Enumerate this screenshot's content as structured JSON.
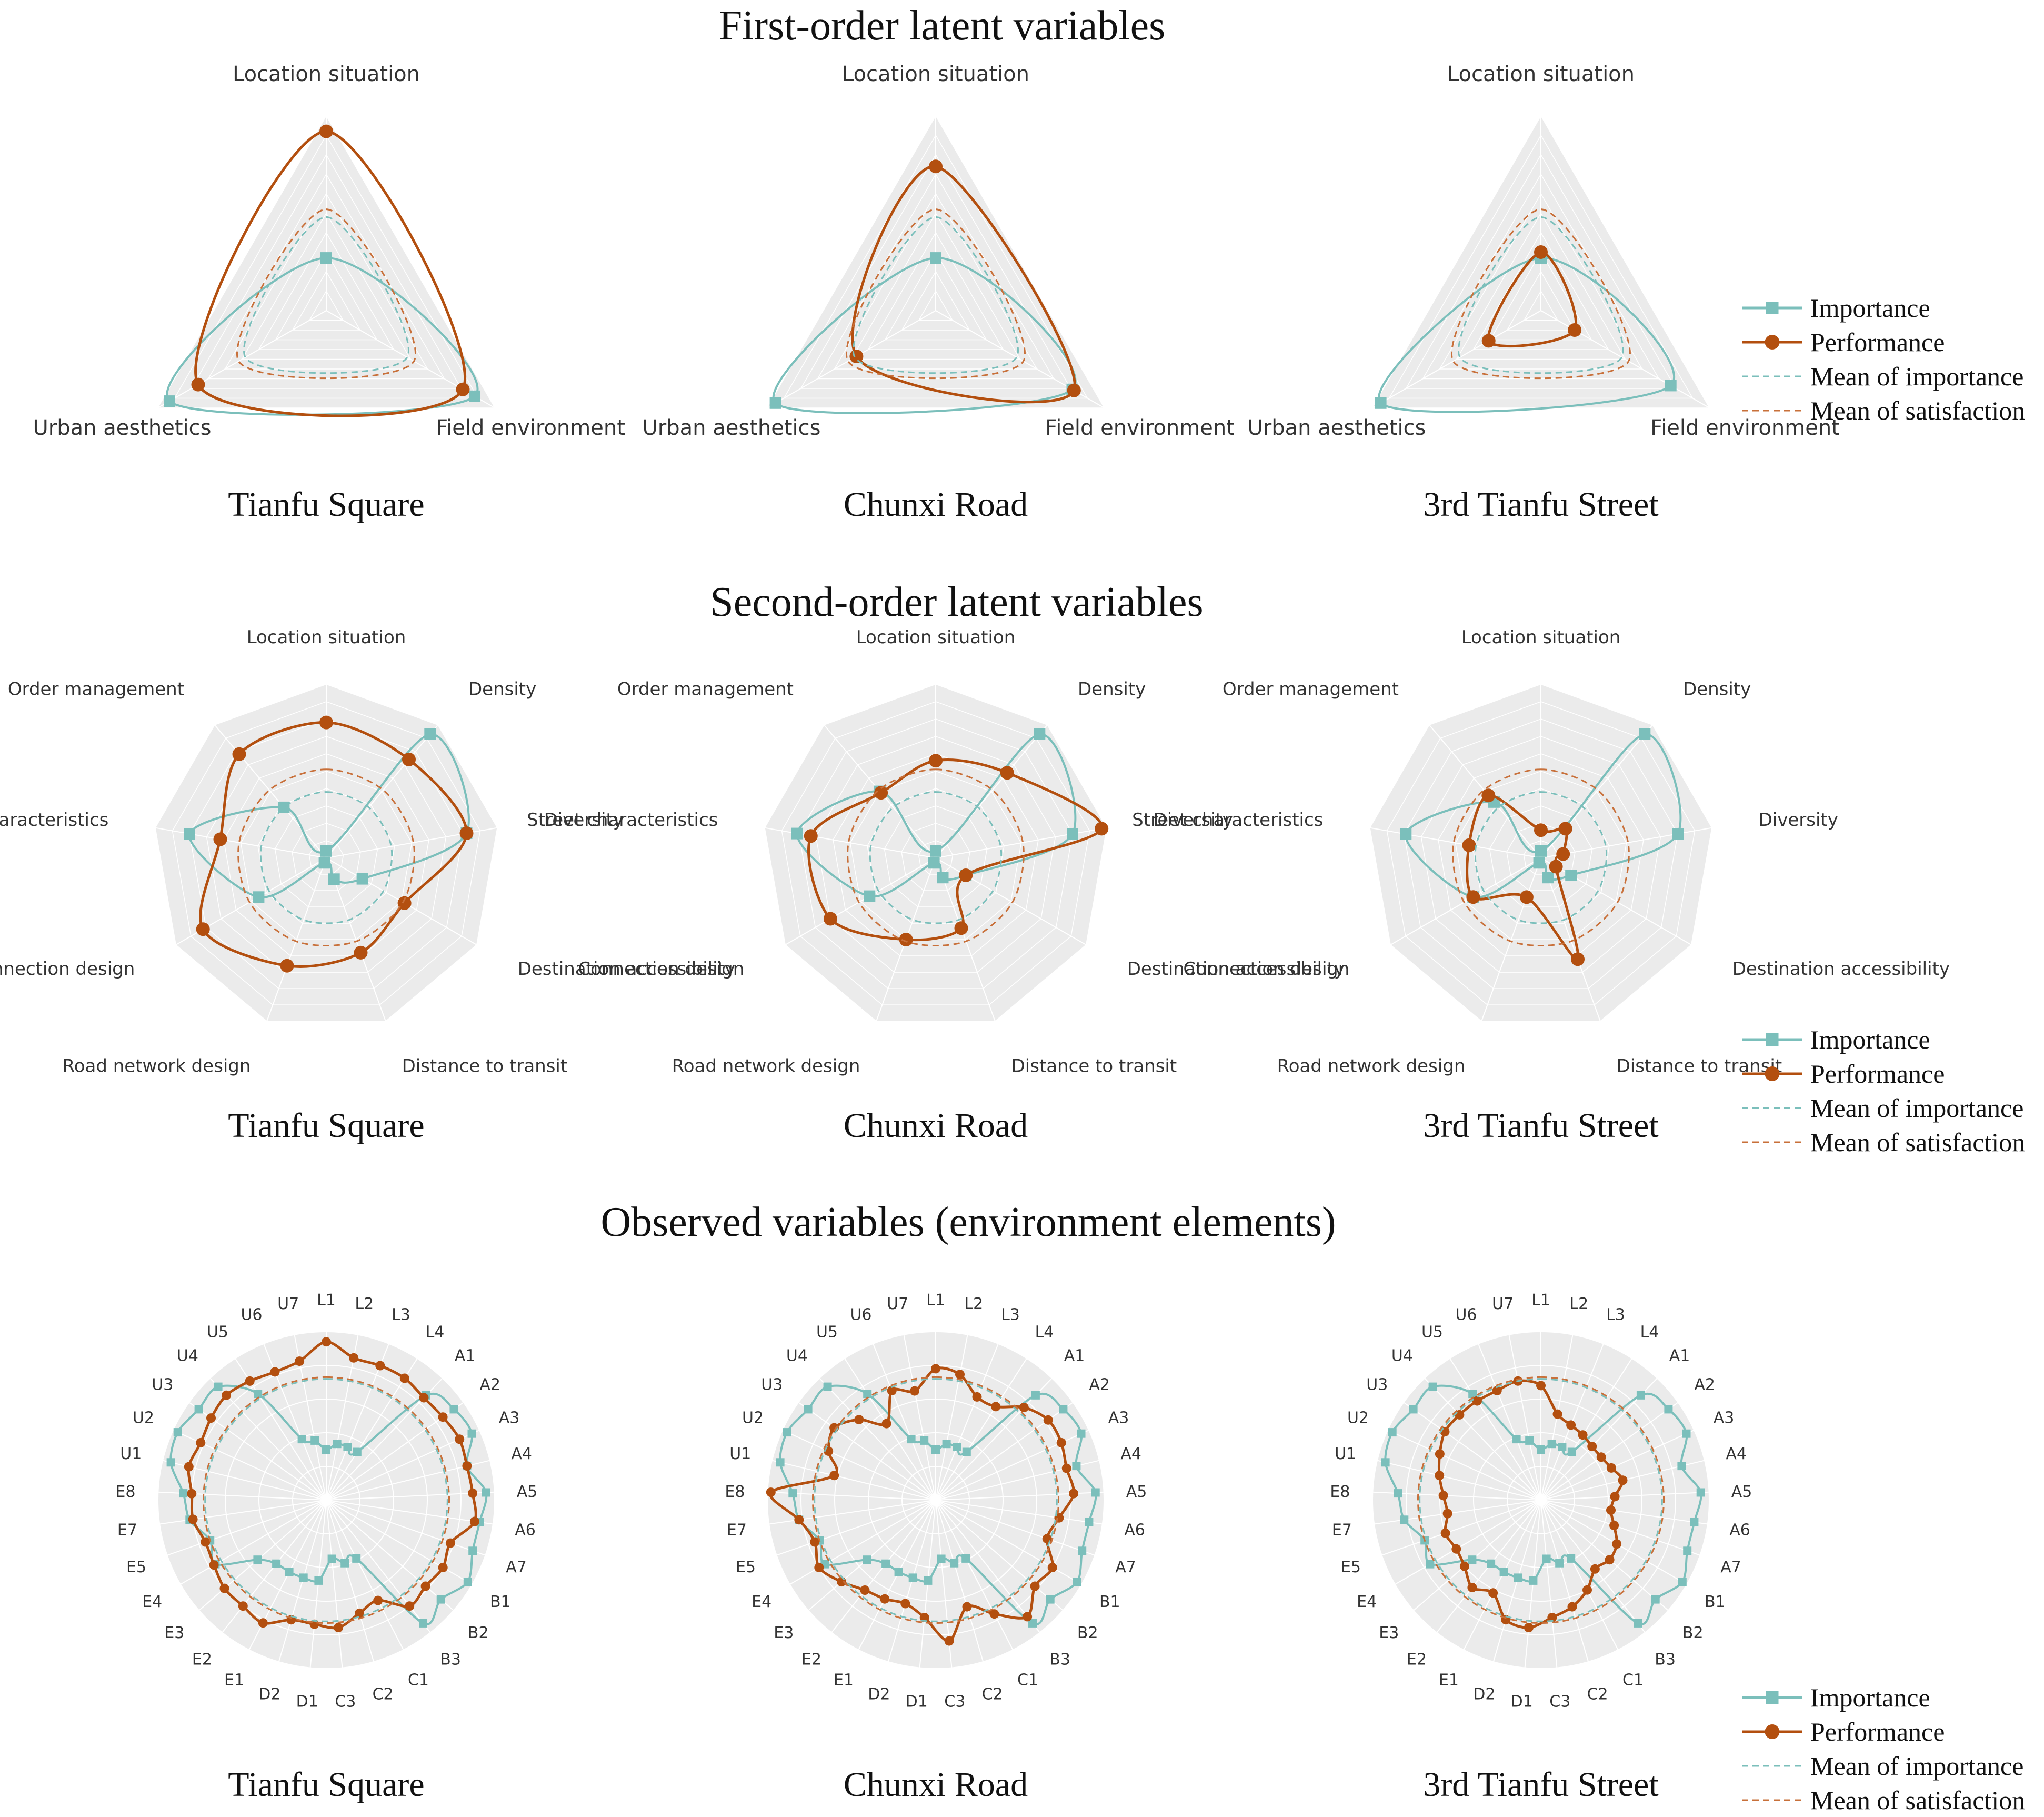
{
  "colors": {
    "importance": "#7bbfbb",
    "performance": "#b34f0f",
    "mean_importance": "#7bbfbb",
    "mean_satisfaction": "#c8703a",
    "grid_bg": "#ebebeb",
    "grid_line": "#ffffff"
  },
  "row_titles": [
    "First-order latent variables",
    "Second-order latent variables",
    "Observed variables (environment elements)"
  ],
  "legend": {
    "importance": "Importance",
    "performance": "Performance",
    "mean_importance": "Mean of importance",
    "mean_satisfaction": "Mean of satisfaction"
  },
  "chart_data": [
    {
      "type": "radar",
      "row": 1,
      "title": "Tianfu Square",
      "axes": [
        "Location situation",
        "Field environment",
        "Urban aesthetics"
      ],
      "range": [
        0,
        1
      ],
      "series": [
        {
          "name": "Importance",
          "values": [
            0.27,
            0.88,
            0.93
          ]
        },
        {
          "name": "Performance",
          "values": [
            0.92,
            0.81,
            0.76
          ]
        },
        {
          "name": "Mean of importance",
          "values": [
            0.48,
            0.48,
            0.48
          ]
        },
        {
          "name": "Mean of satisfaction",
          "values": [
            0.52,
            0.52,
            0.52
          ]
        }
      ]
    },
    {
      "type": "radar",
      "row": 1,
      "title": "Chunxi Road",
      "axes": [
        "Location situation",
        "Field environment",
        "Urban aesthetics"
      ],
      "range": [
        0,
        1
      ],
      "series": [
        {
          "name": "Importance",
          "values": [
            0.27,
            0.81,
            0.95
          ]
        },
        {
          "name": "Performance",
          "values": [
            0.74,
            0.82,
            0.47
          ]
        },
        {
          "name": "Mean of importance",
          "values": [
            0.48,
            0.48,
            0.48
          ]
        },
        {
          "name": "Mean of satisfaction",
          "values": [
            0.52,
            0.52,
            0.52
          ]
        }
      ]
    },
    {
      "type": "radar",
      "row": 1,
      "title": "3rd Tianfu Street",
      "axes": [
        "Location situation",
        "Field environment",
        "Urban aesthetics"
      ],
      "range": [
        0,
        1
      ],
      "series": [
        {
          "name": "Importance",
          "values": [
            0.27,
            0.77,
            0.95
          ]
        },
        {
          "name": "Performance",
          "values": [
            0.3,
            0.2,
            0.31
          ]
        },
        {
          "name": "Mean of importance",
          "values": [
            0.48,
            0.48,
            0.48
          ]
        },
        {
          "name": "Mean of satisfaction",
          "values": [
            0.52,
            0.52,
            0.52
          ]
        }
      ]
    },
    {
      "type": "radar",
      "row": 2,
      "title": "Tianfu Square",
      "axes": [
        "Location situation",
        "Density",
        "Diversity",
        "Destination accessibility",
        "Distance to transit",
        "Road network design",
        "Connection design",
        "Street characteristics",
        "Order management"
      ],
      "range": [
        0,
        1
      ],
      "series": [
        {
          "name": "Importance",
          "values": [
            0.04,
            0.93,
            0.82,
            0.24,
            0.13,
            0.03,
            0.45,
            0.8,
            0.38
          ]
        },
        {
          "name": "Performance",
          "values": [
            0.78,
            0.74,
            0.82,
            0.52,
            0.58,
            0.66,
            0.82,
            0.62,
            0.78
          ]
        },
        {
          "name": "Mean of importance",
          "values": [
            0.38,
            0.38,
            0.38,
            0.38,
            0.38,
            0.38,
            0.38,
            0.38,
            0.38
          ]
        },
        {
          "name": "Mean of satisfaction",
          "values": [
            0.51,
            0.51,
            0.51,
            0.51,
            0.51,
            0.51,
            0.51,
            0.51,
            0.51
          ]
        }
      ]
    },
    {
      "type": "radar",
      "row": 2,
      "title": "Chunxi Road",
      "axes": [
        "Location situation",
        "Density",
        "Diversity",
        "Destination accessibility",
        "Distance to transit",
        "Road network design",
        "Connection design",
        "Street characteristics",
        "Order management"
      ],
      "range": [
        0,
        1
      ],
      "series": [
        {
          "name": "Importance",
          "values": [
            0.04,
            0.93,
            0.8,
            0.2,
            0.12,
            0.03,
            0.44,
            0.81,
            0.5
          ]
        },
        {
          "name": "Performance",
          "values": [
            0.56,
            0.64,
            0.97,
            0.2,
            0.43,
            0.5,
            0.7,
            0.73,
            0.49
          ]
        },
        {
          "name": "Mean of importance",
          "values": [
            0.38,
            0.38,
            0.38,
            0.38,
            0.38,
            0.38,
            0.38,
            0.38,
            0.38
          ]
        },
        {
          "name": "Mean of satisfaction",
          "values": [
            0.51,
            0.51,
            0.51,
            0.51,
            0.51,
            0.51,
            0.51,
            0.51,
            0.51
          ]
        }
      ]
    },
    {
      "type": "radar",
      "row": 2,
      "title": "3rd Tianfu Street",
      "axes": [
        "Location situation",
        "Density",
        "Diversity",
        "Destination accessibility",
        "Distance to transit",
        "Road network design",
        "Connection design",
        "Street characteristics",
        "Order management"
      ],
      "range": [
        0,
        1
      ],
      "series": [
        {
          "name": "Importance",
          "values": [
            0.04,
            0.93,
            0.8,
            0.2,
            0.12,
            0.03,
            0.45,
            0.79,
            0.42
          ]
        },
        {
          "name": "Performance",
          "values": [
            0.16,
            0.22,
            0.13,
            0.1,
            0.62,
            0.24,
            0.45,
            0.42,
            0.47
          ]
        },
        {
          "name": "Mean of importance",
          "values": [
            0.38,
            0.38,
            0.38,
            0.38,
            0.38,
            0.38,
            0.38,
            0.38,
            0.38
          ]
        },
        {
          "name": "Mean of satisfaction",
          "values": [
            0.51,
            0.51,
            0.51,
            0.51,
            0.51,
            0.51,
            0.51,
            0.51,
            0.51
          ]
        }
      ]
    },
    {
      "type": "radar",
      "row": 3,
      "title": "Tianfu Square",
      "axes": [
        "L1",
        "L2",
        "L3",
        "L4",
        "A1",
        "A2",
        "A3",
        "A4",
        "A5",
        "A6",
        "A7",
        "B1",
        "B2",
        "B3",
        "C1",
        "C2",
        "C3",
        "D1",
        "D2",
        "E1",
        "E2",
        "E3",
        "E4",
        "E5",
        "E7",
        "E8",
        "U1",
        "U2",
        "U3",
        "U4",
        "U5",
        "U6",
        "U7"
      ],
      "range": [
        0,
        1
      ],
      "series": [
        {
          "name": "Importance",
          "values": [
            0.3,
            0.34,
            0.34,
            0.34,
            0.86,
            0.93,
            0.95,
            0.86,
            0.95,
            0.92,
            0.92,
            0.97,
            0.9,
            0.93,
            0.39,
            0.39,
            0.35,
            0.48,
            0.48,
            0.48,
            0.48,
            0.54,
            0.76,
            0.73,
            0.82,
            0.85,
            0.95,
            0.97,
            0.93,
            0.93,
            0.75,
            0.39,
            0.36
          ]
        },
        {
          "name": "Performance",
          "values": [
            0.94,
            0.86,
            0.86,
            0.86,
            0.84,
            0.85,
            0.87,
            0.86,
            0.87,
            0.89,
            0.78,
            0.8,
            0.78,
            0.8,
            0.67,
            0.7,
            0.76,
            0.74,
            0.74,
            0.82,
            0.8,
            0.8,
            0.77,
            0.76,
            0.8,
            0.8,
            0.84,
            0.82,
            0.84,
            0.86,
            0.84,
            0.82,
            0.84
          ]
        },
        {
          "name": "Mean of importance",
          "values": [
            0.72,
            0.72,
            0.72,
            0.72,
            0.72,
            0.72,
            0.72,
            0.72,
            0.72,
            0.72,
            0.72,
            0.72,
            0.72,
            0.72,
            0.72,
            0.72,
            0.72,
            0.72,
            0.72,
            0.72,
            0.72,
            0.72,
            0.72,
            0.72,
            0.72,
            0.72,
            0.72,
            0.72,
            0.72,
            0.72,
            0.72,
            0.72,
            0.72
          ]
        },
        {
          "name": "Mean of satisfaction",
          "values": [
            0.73,
            0.73,
            0.73,
            0.73,
            0.73,
            0.73,
            0.73,
            0.73,
            0.73,
            0.73,
            0.73,
            0.73,
            0.73,
            0.73,
            0.73,
            0.73,
            0.73,
            0.73,
            0.73,
            0.73,
            0.73,
            0.73,
            0.73,
            0.73,
            0.73,
            0.73,
            0.73,
            0.73,
            0.73,
            0.73,
            0.73,
            0.73,
            0.73
          ]
        }
      ]
    },
    {
      "type": "radar",
      "row": 3,
      "title": "Chunxi Road",
      "axes": [
        "L1",
        "L2",
        "L3",
        "L4",
        "A1",
        "A2",
        "A3",
        "A4",
        "A5",
        "A6",
        "A7",
        "B1",
        "B2",
        "B3",
        "C1",
        "C2",
        "C3",
        "D1",
        "D2",
        "E1",
        "E2",
        "E3",
        "E4",
        "E5",
        "E7",
        "E8",
        "U1",
        "U2",
        "U3",
        "U4",
        "U5",
        "U6",
        "U7"
      ],
      "range": [
        0,
        1
      ],
      "series": [
        {
          "name": "Importance",
          "values": [
            0.3,
            0.34,
            0.34,
            0.34,
            0.86,
            0.93,
            0.95,
            0.86,
            0.95,
            0.92,
            0.92,
            0.97,
            0.9,
            0.93,
            0.39,
            0.39,
            0.35,
            0.48,
            0.48,
            0.48,
            0.48,
            0.54,
            0.76,
            0.73,
            0.82,
            0.85,
            0.95,
            0.97,
            0.93,
            0.93,
            0.75,
            0.39,
            0.36
          ]
        },
        {
          "name": "Performance",
          "values": [
            0.78,
            0.76,
            0.66,
            0.66,
            0.76,
            0.82,
            0.82,
            0.8,
            0.82,
            0.74,
            0.7,
            0.8,
            0.78,
            0.88,
            0.76,
            0.66,
            0.84,
            0.7,
            0.64,
            0.66,
            0.68,
            0.74,
            0.8,
            0.76,
            0.82,
            0.98,
            0.62,
            0.7,
            0.74,
            0.66,
            0.54,
            0.7,
            0.66
          ]
        },
        {
          "name": "Mean of importance",
          "values": [
            0.72,
            0.72,
            0.72,
            0.72,
            0.72,
            0.72,
            0.72,
            0.72,
            0.72,
            0.72,
            0.72,
            0.72,
            0.72,
            0.72,
            0.72,
            0.72,
            0.72,
            0.72,
            0.72,
            0.72,
            0.72,
            0.72,
            0.72,
            0.72,
            0.72,
            0.72,
            0.72,
            0.72,
            0.72,
            0.72,
            0.72,
            0.72,
            0.72
          ]
        },
        {
          "name": "Mean of satisfaction",
          "values": [
            0.73,
            0.73,
            0.73,
            0.73,
            0.73,
            0.73,
            0.73,
            0.73,
            0.73,
            0.73,
            0.73,
            0.73,
            0.73,
            0.73,
            0.73,
            0.73,
            0.73,
            0.73,
            0.73,
            0.73,
            0.73,
            0.73,
            0.73,
            0.73,
            0.73,
            0.73,
            0.73,
            0.73,
            0.73,
            0.73,
            0.73,
            0.73,
            0.73
          ]
        }
      ]
    },
    {
      "type": "radar",
      "row": 3,
      "title": "3rd Tianfu Street",
      "axes": [
        "L1",
        "L2",
        "L3",
        "L4",
        "A1",
        "A2",
        "A3",
        "A4",
        "A5",
        "A6",
        "A7",
        "B1",
        "B2",
        "B3",
        "C1",
        "C2",
        "C3",
        "D1",
        "D2",
        "E1",
        "E2",
        "E3",
        "E4",
        "E5",
        "E7",
        "E8",
        "U1",
        "U2",
        "U3",
        "U4",
        "U5",
        "U6",
        "U7"
      ],
      "range": [
        0,
        1
      ],
      "series": [
        {
          "name": "Importance",
          "values": [
            0.3,
            0.34,
            0.34,
            0.34,
            0.86,
            0.93,
            0.95,
            0.86,
            0.95,
            0.92,
            0.92,
            0.97,
            0.9,
            0.93,
            0.39,
            0.39,
            0.35,
            0.48,
            0.48,
            0.48,
            0.48,
            0.54,
            0.76,
            0.73,
            0.82,
            0.85,
            0.95,
            0.97,
            0.93,
            0.93,
            0.75,
            0.39,
            0.36
          ]
        },
        {
          "name": "Performance",
          "values": [
            0.68,
            0.52,
            0.48,
            0.46,
            0.44,
            0.44,
            0.46,
            0.5,
            0.44,
            0.42,
            0.46,
            0.52,
            0.54,
            0.52,
            0.6,
            0.66,
            0.7,
            0.76,
            0.74,
            0.62,
            0.66,
            0.6,
            0.58,
            0.6,
            0.56,
            0.58,
            0.62,
            0.66,
            0.7,
            0.7,
            0.7,
            0.7,
            0.72
          ]
        },
        {
          "name": "Mean of importance",
          "values": [
            0.72,
            0.72,
            0.72,
            0.72,
            0.72,
            0.72,
            0.72,
            0.72,
            0.72,
            0.72,
            0.72,
            0.72,
            0.72,
            0.72,
            0.72,
            0.72,
            0.72,
            0.72,
            0.72,
            0.72,
            0.72,
            0.72,
            0.72,
            0.72,
            0.72,
            0.72,
            0.72,
            0.72,
            0.72,
            0.72,
            0.72,
            0.72,
            0.72
          ]
        },
        {
          "name": "Mean of satisfaction",
          "values": [
            0.73,
            0.73,
            0.73,
            0.73,
            0.73,
            0.73,
            0.73,
            0.73,
            0.73,
            0.73,
            0.73,
            0.73,
            0.73,
            0.73,
            0.73,
            0.73,
            0.73,
            0.73,
            0.73,
            0.73,
            0.73,
            0.73,
            0.73,
            0.73,
            0.73,
            0.73,
            0.73,
            0.73,
            0.73,
            0.73,
            0.73,
            0.73,
            0.73
          ]
        }
      ]
    }
  ]
}
